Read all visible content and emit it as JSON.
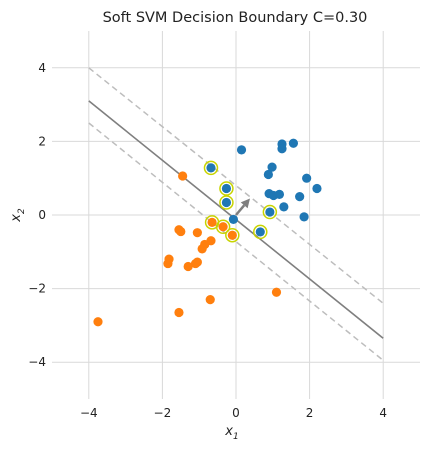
{
  "chart_data": {
    "type": "scatter",
    "title": "Soft SVM Decision Boundary C=0.30",
    "xlabel": "x",
    "xlabel_sub": "1",
    "ylabel": "x",
    "ylabel_sub": "2",
    "xlim": [
      -5,
      5
    ],
    "ylim": [
      -5,
      5
    ],
    "x_ticks": [
      -4,
      -2,
      0,
      2,
      4
    ],
    "y_ticks": [
      -4,
      -2,
      0,
      2,
      4
    ],
    "x_tick_labels": [
      "−4",
      "−2",
      "0",
      "2",
      "4"
    ],
    "y_tick_labels": [
      "−4",
      "−2",
      "0",
      "2",
      "4"
    ],
    "grid": true,
    "colors": {
      "class_pos": "#1f77b4",
      "class_neg": "#ff7f0e",
      "support_ring": "#c8d400",
      "boundary": "#7f7f7f",
      "margin": "#bdbdbd",
      "grid": "#d9d9d9"
    },
    "decision_boundary": {
      "x": [
        -4,
        4
      ],
      "y": [
        3.1,
        -3.35
      ]
    },
    "margin_upper": {
      "x": [
        -4,
        4
      ],
      "y": [
        4.0,
        -2.4
      ]
    },
    "margin_lower": {
      "x": [
        -4,
        4
      ],
      "y": [
        2.5,
        -3.95
      ]
    },
    "weight_arrow": {
      "from": [
        0.0,
        0.0
      ],
      "to": [
        0.38,
        0.45
      ]
    },
    "series": [
      {
        "class": 1,
        "color": "#1f77b4",
        "points": [
          [
            0.15,
            1.77
          ],
          [
            1.25,
            1.93
          ],
          [
            1.56,
            1.95
          ],
          [
            1.25,
            1.8
          ],
          [
            0.98,
            1.3
          ],
          [
            0.88,
            1.1
          ],
          [
            1.92,
            1.0
          ],
          [
            2.2,
            0.72
          ],
          [
            0.9,
            0.58
          ],
          [
            1.02,
            0.53
          ],
          [
            1.18,
            0.56
          ],
          [
            1.73,
            0.5
          ],
          [
            1.3,
            0.22
          ],
          [
            1.85,
            -0.05
          ],
          [
            0.92,
            0.08
          ],
          [
            -0.68,
            1.28
          ],
          [
            -0.26,
            0.72
          ],
          [
            -0.26,
            0.34
          ],
          [
            0.66,
            -0.46
          ],
          [
            -0.07,
            -0.12
          ]
        ]
      },
      {
        "class": -1,
        "color": "#ff7f0e",
        "points": [
          [
            -1.45,
            1.06
          ],
          [
            -0.65,
            -0.2
          ],
          [
            -1.05,
            -0.48
          ],
          [
            -0.35,
            -0.32
          ],
          [
            -0.1,
            -0.55
          ],
          [
            -1.55,
            -0.4
          ],
          [
            -1.5,
            -0.45
          ],
          [
            -0.68,
            -0.7
          ],
          [
            -0.85,
            -0.8
          ],
          [
            -0.92,
            -0.92
          ],
          [
            -1.82,
            -1.2
          ],
          [
            -1.85,
            -1.32
          ],
          [
            -1.05,
            -1.28
          ],
          [
            -1.1,
            -1.32
          ],
          [
            -1.3,
            -1.4
          ],
          [
            -0.7,
            -2.3
          ],
          [
            -1.55,
            -2.65
          ],
          [
            -3.75,
            -2.9
          ],
          [
            1.1,
            -2.1
          ]
        ]
      }
    ],
    "support_vectors": [
      [
        -0.68,
        1.28
      ],
      [
        -0.26,
        0.72
      ],
      [
        -0.26,
        0.34
      ],
      [
        0.92,
        0.08
      ],
      [
        0.66,
        -0.46
      ],
      [
        -0.65,
        -0.2
      ],
      [
        -0.35,
        -0.32
      ],
      [
        -0.1,
        -0.55
      ]
    ]
  }
}
